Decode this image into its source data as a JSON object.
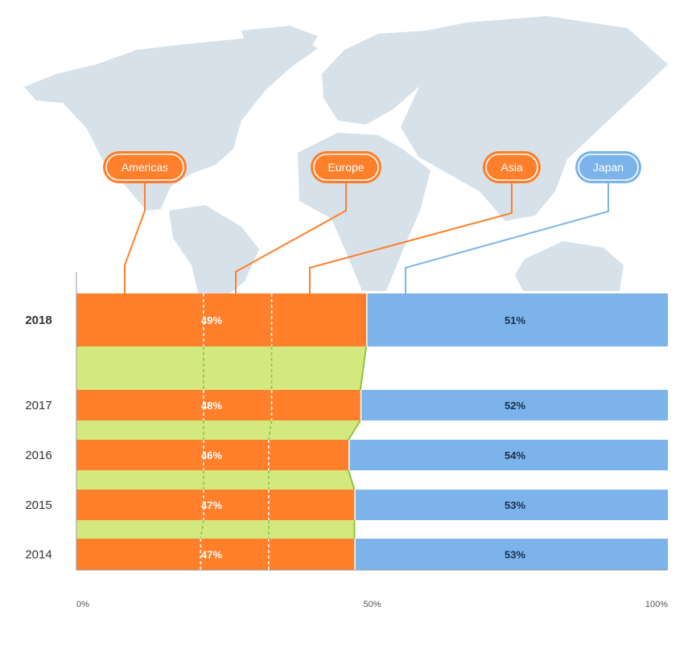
{
  "colors": {
    "orange": "#FF7F2A",
    "blue": "#7BB3EA",
    "green": "#D4E880",
    "green_line": "#8DC63F",
    "map": "#D6E1EA",
    "axis": "#999999"
  },
  "regions": [
    {
      "label": "Americas",
      "style": "orange-pill"
    },
    {
      "label": "Europe",
      "style": "orange-pill"
    },
    {
      "label": "Asia",
      "style": "orange-pill"
    },
    {
      "label": "Japan",
      "style": "blue-pill"
    }
  ],
  "chart_data": {
    "type": "bar",
    "orientation": "horizontal",
    "stacked_percent": true,
    "categories": [
      "2018",
      "2017",
      "2016",
      "2015",
      "2014"
    ],
    "highlight_category": "2018",
    "series": [
      {
        "name": "Americas, Europe, Asia",
        "color": "#FF7F2A",
        "values": [
          49,
          48,
          46,
          47,
          47
        ],
        "labels": [
          "49%",
          "48%",
          "46%",
          "47%",
          "47%"
        ]
      },
      {
        "name": "Japan",
        "color": "#7BB3EA",
        "values": [
          51,
          52,
          54,
          53,
          53
        ],
        "labels": [
          "51%",
          "52%",
          "54%",
          "53%",
          "53%"
        ]
      }
    ],
    "inner_split_americas": [
      21.5,
      21.5,
      21.5,
      21.5,
      21
    ],
    "inner_split_europe": [
      33,
      33,
      32.5,
      32.5,
      32.5
    ],
    "xticks": [
      "0%",
      "50%",
      "100%"
    ],
    "xlim": [
      0,
      100
    ],
    "grid": false
  }
}
